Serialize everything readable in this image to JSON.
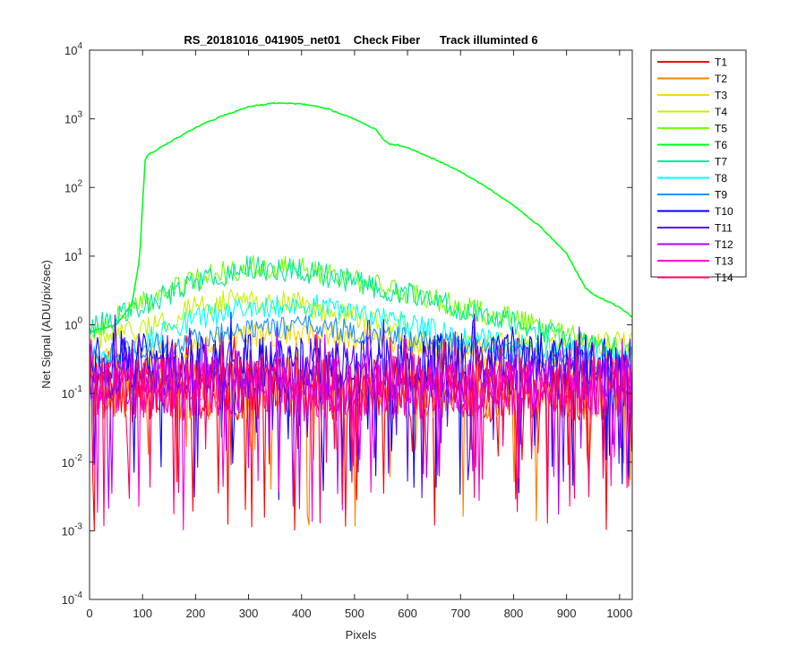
{
  "chart_data": {
    "type": "line",
    "title": "RS_20181016_041905_net01    Check Fiber      Track illuminted 6",
    "xlabel": "Pixels",
    "ylabel": "Net Signal (ADU/pix/sec)",
    "xlim": [
      0,
      1024
    ],
    "ylim": [
      0.0001,
      10000
    ],
    "yscale": "log",
    "grid": false,
    "legend_position": "outside-top-right",
    "x_ticks": [
      "0",
      "100",
      "200",
      "300",
      "400",
      "500",
      "600",
      "700",
      "800",
      "900",
      "1000"
    ],
    "y_ticks": [
      {
        "base": "10",
        "exp": "-4"
      },
      {
        "base": "10",
        "exp": "-3"
      },
      {
        "base": "10",
        "exp": "-2"
      },
      {
        "base": "10",
        "exp": "-1"
      },
      {
        "base": "10",
        "exp": "0"
      },
      {
        "base": "10",
        "exp": "1"
      },
      {
        "base": "10",
        "exp": "2"
      },
      {
        "base": "10",
        "exp": "3"
      },
      {
        "base": "10",
        "exp": "4"
      }
    ],
    "series": [
      {
        "name": "T1",
        "color": "#ff0000",
        "kind": "noise",
        "level": 0.12,
        "x": [
          0,
          1024
        ],
        "y": [
          0.12,
          0.12
        ]
      },
      {
        "name": "T2",
        "color": "#ff7f00",
        "kind": "noise",
        "level": 0.13,
        "x": [
          0,
          1024
        ],
        "y": [
          0.13,
          0.13
        ]
      },
      {
        "name": "T3",
        "color": "#ffd700",
        "kind": "hump",
        "x": [
          0,
          100,
          200,
          300,
          400,
          500,
          600,
          700,
          800,
          900,
          1024
        ],
        "y": [
          0.3,
          0.35,
          0.5,
          0.7,
          0.75,
          0.65,
          0.5,
          0.4,
          0.3,
          0.25,
          0.2
        ]
      },
      {
        "name": "T4",
        "color": "#c8f000",
        "kind": "hump",
        "x": [
          0,
          50,
          100,
          150,
          200,
          250,
          300,
          350,
          400,
          450,
          500,
          550,
          600
        ],
        "y": [
          0.6,
          0.7,
          0.8,
          1.2,
          1.8,
          2.2,
          2.3,
          2.2,
          2.0,
          1.6,
          1.3,
          1.0,
          0.9
        ]
      },
      {
        "name": "T5",
        "color": "#70ff00",
        "kind": "hump",
        "x": [
          0,
          100,
          200,
          300,
          400,
          500,
          600,
          700,
          800,
          900,
          1024
        ],
        "y": [
          0.8,
          2.0,
          4.5,
          7.0,
          6.5,
          4.5,
          3.0,
          1.8,
          1.2,
          0.7,
          0.4
        ]
      },
      {
        "name": "T6",
        "color": "#00ff1a",
        "kind": "smooth",
        "x": [
          0,
          50,
          80,
          95,
          100,
          105,
          110,
          150,
          200,
          250,
          300,
          350,
          400,
          450,
          500,
          540,
          555,
          565,
          580,
          600,
          650,
          700,
          750,
          800,
          850,
          900,
          935,
          950,
          1000,
          1024
        ],
        "y": [
          0.8,
          1.0,
          2.0,
          10,
          60,
          250,
          300,
          450,
          750,
          1100,
          1500,
          1700,
          1650,
          1400,
          1000,
          700,
          500,
          430,
          420,
          380,
          260,
          170,
          100,
          55,
          27,
          11,
          3.5,
          2.8,
          1.8,
          1.3
        ]
      },
      {
        "name": "T7",
        "color": "#00e8a0",
        "kind": "hump",
        "x": [
          0,
          100,
          200,
          300,
          400,
          500,
          600,
          700,
          800,
          900,
          1024
        ],
        "y": [
          0.9,
          2.0,
          4.2,
          6.8,
          6.2,
          4.3,
          2.8,
          1.7,
          1.1,
          0.6,
          0.35
        ]
      },
      {
        "name": "T8",
        "color": "#00ffff",
        "kind": "hump",
        "x": [
          100,
          150,
          200,
          300,
          400,
          500,
          600,
          700,
          800,
          900,
          1024
        ],
        "y": [
          0.6,
          0.8,
          1.2,
          1.8,
          2.0,
          1.5,
          1.0,
          0.7,
          0.5,
          0.4,
          0.35
        ]
      },
      {
        "name": "T9",
        "color": "#1e90ff",
        "kind": "hump",
        "x": [
          0,
          100,
          200,
          300,
          400,
          500,
          600,
          700,
          800,
          900,
          1024
        ],
        "y": [
          0.35,
          0.45,
          0.6,
          0.85,
          0.95,
          0.8,
          0.6,
          0.5,
          0.4,
          0.3,
          0.25
        ]
      },
      {
        "name": "T10",
        "color": "#0000ff",
        "kind": "noise",
        "level": 0.3,
        "x": [
          0,
          1024
        ],
        "y": [
          0.3,
          0.3
        ]
      },
      {
        "name": "T11",
        "color": "#5a00ff",
        "kind": "noise",
        "level": 0.25,
        "x": [
          0,
          1024
        ],
        "y": [
          0.25,
          0.25
        ]
      },
      {
        "name": "T12",
        "color": "#b400ff",
        "kind": "noise",
        "level": 0.15,
        "x": [
          0,
          1024
        ],
        "y": [
          0.15,
          0.15
        ]
      },
      {
        "name": "T13",
        "color": "#ff00dc",
        "kind": "noise",
        "level": 0.13,
        "x": [
          0,
          1024
        ],
        "y": [
          0.13,
          0.13
        ]
      },
      {
        "name": "T14",
        "color": "#ff0066",
        "kind": "noise",
        "level": 0.14,
        "x": [
          0,
          1024
        ],
        "y": [
          0.14,
          0.14
        ]
      }
    ]
  }
}
